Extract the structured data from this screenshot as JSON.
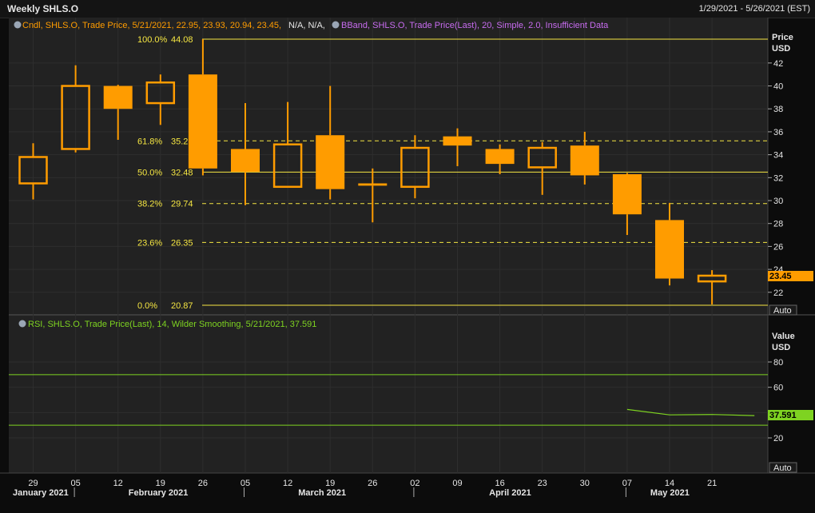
{
  "window": {
    "title": "Weekly SHLS.O",
    "date_range": "1/29/2021 - 5/26/2021 (EST)"
  },
  "colors": {
    "candle": "#ff9c00",
    "fib": "#f5e642",
    "rsi": "#7ed321",
    "bband": "#c86cf0",
    "grid": "#2e2e2e"
  },
  "price_panel": {
    "legend_cndl": "Cndl, SHLS.O, Trade Price, 5/21/2021, 22.95, 23.93, 20.94, 23.45,",
    "legend_na": "N/A, N/A,",
    "legend_bband": "BBand, SHLS.O, Trade Price(Last), 20, Simple, 2.0, Insufficient Data",
    "axis_title": "Price",
    "axis_unit": "USD",
    "ticks": [
      "22",
      "24",
      "26",
      "28",
      "30",
      "32",
      "34",
      "36",
      "38",
      "40",
      "42"
    ],
    "last_price": "23.45",
    "auto_label": "Auto"
  },
  "fib_levels": [
    {
      "pct": "100.0%",
      "value": "44.08",
      "level": 44.08,
      "dashed": false
    },
    {
      "pct": "61.8%",
      "value": "35.21",
      "level": 35.21,
      "dashed": true
    },
    {
      "pct": "50.0%",
      "value": "32.48",
      "level": 32.48,
      "dashed": false
    },
    {
      "pct": "38.2%",
      "value": "29.74",
      "level": 29.74,
      "dashed": true
    },
    {
      "pct": "23.6%",
      "value": "26.35",
      "level": 26.35,
      "dashed": true
    },
    {
      "pct": "0.0%",
      "value": "20.87",
      "level": 20.87,
      "dashed": false
    }
  ],
  "rsi_panel": {
    "legend": "RSI, SHLS.O, Trade Price(Last), 14, Wilder Smoothing, 5/21/2021, 37.591",
    "axis_title": "Value",
    "axis_unit": "USD",
    "ticks": [
      "20",
      "40",
      "60",
      "80"
    ],
    "upper_band": 70,
    "lower_band": 30,
    "last_value": "37.591",
    "auto_label": "Auto",
    "line": [
      42.5,
      38.2,
      38.5,
      37.6
    ]
  },
  "x_axis": {
    "days": [
      "29",
      "05",
      "12",
      "19",
      "26",
      "05",
      "12",
      "19",
      "26",
      "02",
      "09",
      "16",
      "23",
      "30",
      "07",
      "14",
      "21"
    ],
    "months": [
      {
        "label": "January 2021",
        "at": 0
      },
      {
        "label": "February 2021",
        "at": 3
      },
      {
        "label": "March 2021",
        "at": 7
      },
      {
        "label": "April 2021",
        "at": 11.5
      },
      {
        "label": "May 2021",
        "at": 15.3
      }
    ],
    "month_separators": [
      1,
      5,
      9,
      14
    ]
  },
  "candles": [
    {
      "o": 31.5,
      "h": 35.0,
      "l": 30.1,
      "c": 33.8
    },
    {
      "o": 34.5,
      "h": 41.8,
      "l": 34.2,
      "c": 40.0
    },
    {
      "o": 40.0,
      "h": 40.1,
      "l": 35.3,
      "c": 38.0
    },
    {
      "o": 38.5,
      "h": 41.0,
      "l": 36.6,
      "c": 40.3
    },
    {
      "o": 41.0,
      "h": 44.08,
      "l": 32.2,
      "c": 32.8
    },
    {
      "o": 34.5,
      "h": 38.5,
      "l": 29.6,
      "c": 32.5
    },
    {
      "o": 31.2,
      "h": 38.6,
      "l": 31.2,
      "c": 34.9
    },
    {
      "o": 35.7,
      "h": 40.0,
      "l": 30.1,
      "c": 31.0
    },
    {
      "o": 31.5,
      "h": 32.8,
      "l": 28.1,
      "c": 31.3
    },
    {
      "o": 31.2,
      "h": 35.7,
      "l": 30.2,
      "c": 34.6
    },
    {
      "o": 35.6,
      "h": 36.3,
      "l": 33.0,
      "c": 34.8
    },
    {
      "o": 34.5,
      "h": 34.9,
      "l": 32.3,
      "c": 33.2
    },
    {
      "o": 32.9,
      "h": 35.1,
      "l": 30.5,
      "c": 34.6
    },
    {
      "o": 34.8,
      "h": 36.0,
      "l": 31.4,
      "c": 32.2
    },
    {
      "o": 32.3,
      "h": 32.4,
      "l": 27.0,
      "c": 28.8
    },
    {
      "o": 28.3,
      "h": 29.8,
      "l": 22.6,
      "c": 23.2
    },
    {
      "o": 22.95,
      "h": 23.93,
      "l": 20.94,
      "c": 23.45
    }
  ]
}
